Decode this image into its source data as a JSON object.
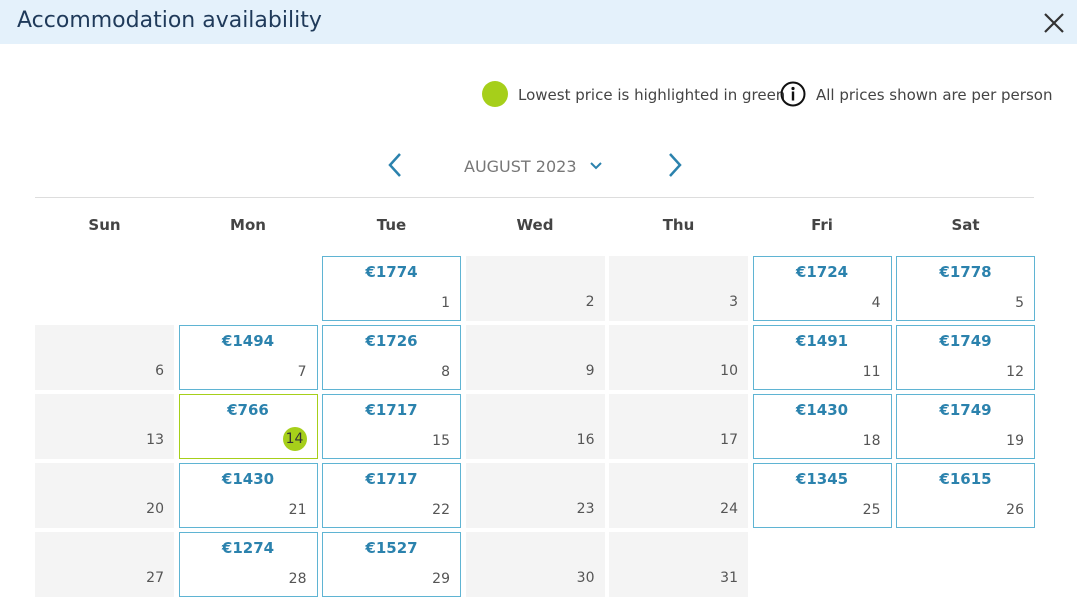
{
  "header": {
    "title": "Accommodation availability"
  },
  "legend": {
    "lowest": "Lowest price is highlighted in green",
    "note": "All prices shown are per person"
  },
  "calendar": {
    "month": "AUGUST 2023",
    "weekdays": [
      "Sun",
      "Mon",
      "Tue",
      "Wed",
      "Thu",
      "Fri",
      "Sat"
    ],
    "weeks": [
      [
        null,
        null,
        {
          "day": 1,
          "price": "€1774"
        },
        {
          "day": 2
        },
        {
          "day": 3
        },
        {
          "day": 4,
          "price": "€1724"
        },
        {
          "day": 5,
          "price": "€1778"
        }
      ],
      [
        {
          "day": 6
        },
        {
          "day": 7,
          "price": "€1494"
        },
        {
          "day": 8,
          "price": "€1726"
        },
        {
          "day": 9
        },
        {
          "day": 10
        },
        {
          "day": 11,
          "price": "€1491"
        },
        {
          "day": 12,
          "price": "€1749"
        }
      ],
      [
        {
          "day": 13
        },
        {
          "day": 14,
          "price": "€766",
          "lowest": true
        },
        {
          "day": 15,
          "price": "€1717"
        },
        {
          "day": 16
        },
        {
          "day": 17
        },
        {
          "day": 18,
          "price": "€1430"
        },
        {
          "day": 19,
          "price": "€1749"
        }
      ],
      [
        {
          "day": 20
        },
        {
          "day": 21,
          "price": "€1430"
        },
        {
          "day": 22,
          "price": "€1717"
        },
        {
          "day": 23
        },
        {
          "day": 24
        },
        {
          "day": 25,
          "price": "€1345"
        },
        {
          "day": 26,
          "price": "€1615"
        }
      ],
      [
        {
          "day": 27
        },
        {
          "day": 28,
          "price": "€1274"
        },
        {
          "day": 29,
          "price": "€1527"
        },
        {
          "day": 30
        },
        {
          "day": 31
        },
        null,
        null
      ]
    ]
  }
}
